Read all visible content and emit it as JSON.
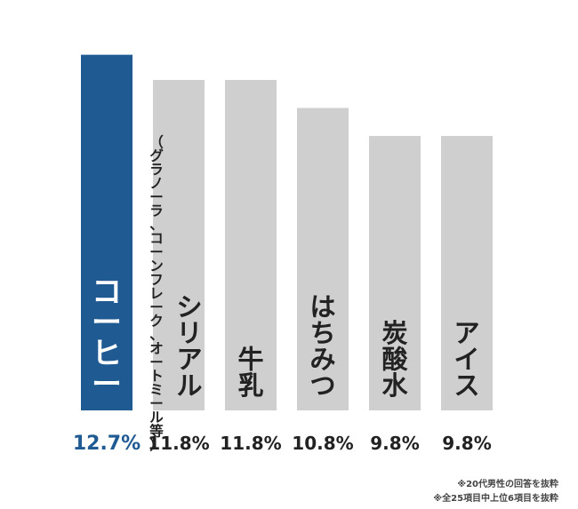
{
  "chart_data": {
    "type": "bar",
    "categories": [
      "コーヒー",
      "シリアル",
      "牛乳",
      "はちみつ",
      "炭酸水",
      "アイス"
    ],
    "category_notes": [
      "",
      "（グラノーラ、コーンフレーク、オートミール等）",
      "",
      "",
      "",
      ""
    ],
    "values": [
      12.7,
      11.8,
      11.8,
      10.8,
      9.8,
      9.8
    ],
    "value_labels": [
      "12.7%",
      "11.8%",
      "11.8%",
      "10.8%",
      "9.8%",
      "9.8%"
    ],
    "unit": "%",
    "ylim": [
      0,
      13.45
    ],
    "grid": false,
    "legend": "none",
    "highlight_index": 0
  },
  "colors": {
    "highlight": "#1f5a93",
    "bar": "#cfcfcf",
    "highlight_text": "#ffffff",
    "text": "#222222",
    "highlight_value": "#1f5a93"
  },
  "footnotes": [
    "※20代男性の回答を抜粋",
    "※全25項目中上位6項目を抜粋"
  ]
}
